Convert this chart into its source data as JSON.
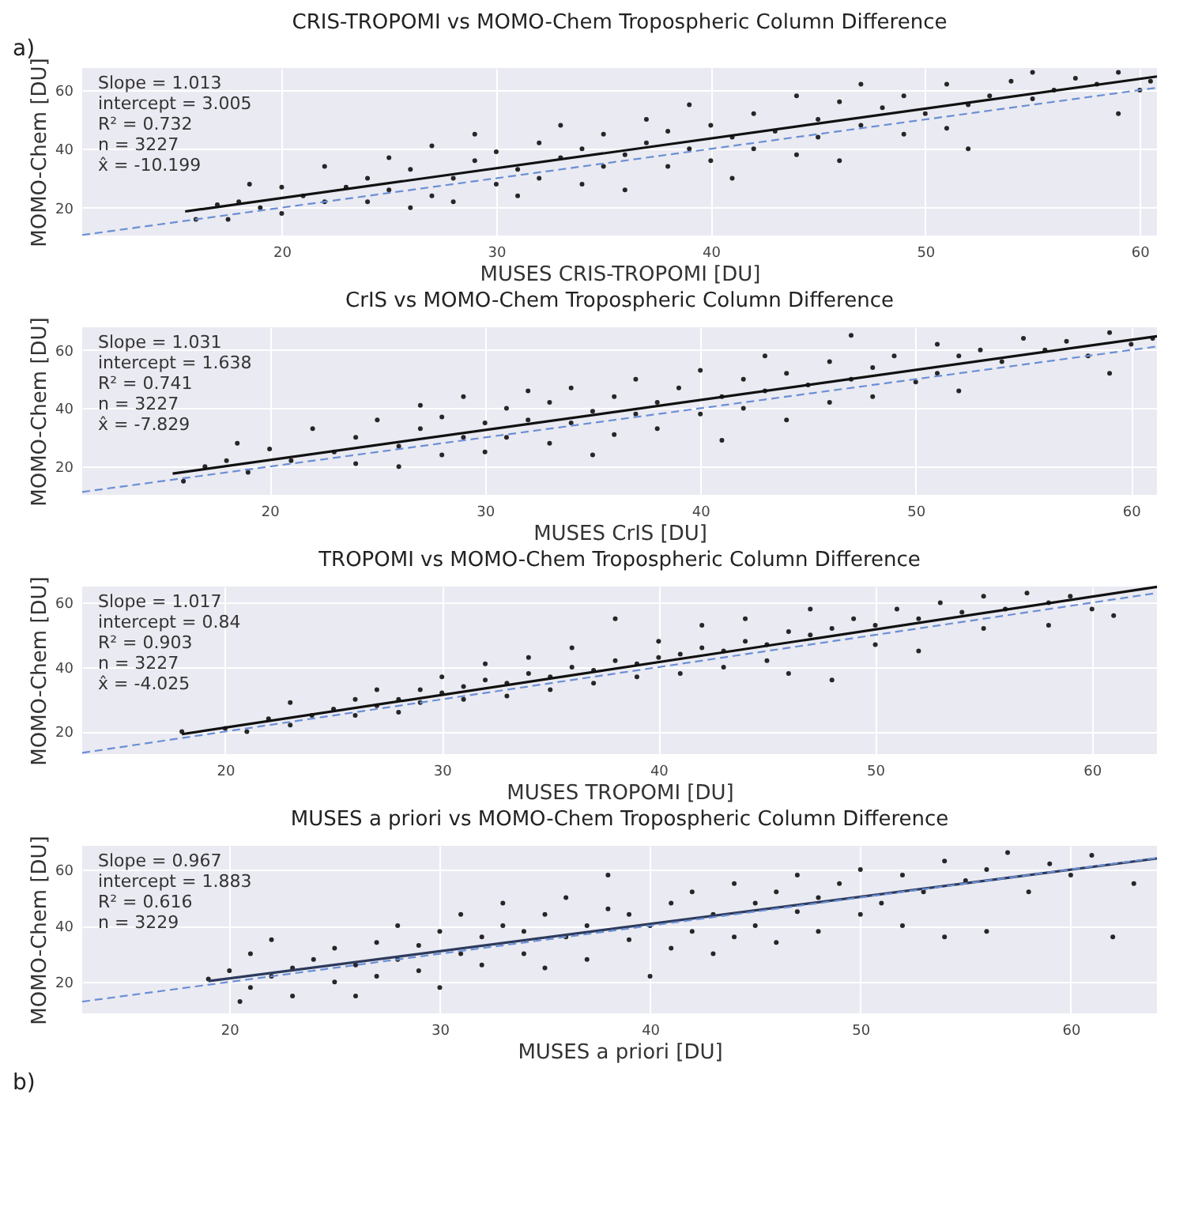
{
  "chart_data": [
    {
      "type": "scatter",
      "title": "CRIS-TROPOMI vs MOMO-Chem Tropospheric Column Difference",
      "xlabel": "MUSES CRIS-TROPOMI [DU]",
      "ylabel": "MOMO-Chem [DU]",
      "xlim": [
        10.7,
        60.8
      ],
      "ylim": [
        10.5,
        67.5
      ],
      "xticks": [
        20,
        30,
        40,
        50,
        60
      ],
      "yticks": [
        20,
        40,
        60
      ],
      "grid": true,
      "annotations": [
        "Slope = 1.013\nintercept = 3.005\nR² = 0.732\nn = 3227\nx̂ = -10.199",
        "a)"
      ],
      "series": [
        {
          "type": "scatter",
          "color": "#111111",
          "marker": "circle",
          "x": [
            16,
            17,
            17.5,
            18,
            18.5,
            19,
            20,
            20,
            21,
            22,
            22,
            23,
            24,
            24,
            25,
            25,
            26,
            26,
            27,
            27,
            28,
            28,
            29,
            29,
            30,
            30,
            31,
            31,
            32,
            32,
            33,
            33,
            34,
            34,
            35,
            35,
            36,
            36,
            37,
            37,
            38,
            38,
            39,
            39,
            40,
            40,
            41,
            41,
            42,
            42,
            43,
            44,
            44,
            45,
            45,
            46,
            46,
            47,
            47,
            48,
            49,
            49,
            50,
            51,
            51,
            52,
            52,
            53,
            54,
            55,
            55,
            56,
            57,
            58,
            59,
            59,
            60,
            60.5
          ],
          "values": [
            16,
            21,
            16,
            22,
            28,
            20,
            27,
            18,
            24,
            22,
            34,
            27,
            22,
            30,
            37,
            26,
            20,
            33,
            24,
            41,
            30,
            22,
            36,
            45,
            28,
            39,
            33,
            24,
            42,
            30,
            37,
            48,
            28,
            40,
            34,
            45,
            38,
            26,
            50,
            42,
            34,
            46,
            40,
            55,
            36,
            48,
            44,
            30,
            52,
            40,
            46,
            38,
            58,
            50,
            44,
            56,
            36,
            48,
            62,
            54,
            45,
            58,
            52,
            47,
            62,
            55,
            40,
            58,
            63,
            57,
            66,
            60,
            64,
            62,
            52,
            66,
            60,
            63
          ]
        },
        {
          "type": "line",
          "color": "#111111",
          "line_style": "solid",
          "x": [
            15.5,
            60.8
          ],
          "values": [
            18.7,
            64.6
          ]
        },
        {
          "type": "line",
          "color": "#6b8fd4",
          "line_style": "dashed",
          "x": [
            10.7,
            60.8
          ],
          "values": [
            10.7,
            60.8
          ]
        }
      ]
    },
    {
      "type": "scatter",
      "title": "CrIS vs MOMO-Chem Tropospheric Column Difference",
      "xlabel": "MUSES CrIS [DU]",
      "ylabel": "MOMO-Chem [DU]",
      "xlim": [
        11.3,
        61.2
      ],
      "ylim": [
        10.3,
        67.8
      ],
      "xticks": [
        20,
        30,
        40,
        50,
        60
      ],
      "yticks": [
        20,
        40,
        60
      ],
      "grid": true,
      "annotations": [
        "Slope = 1.031\nintercept = 1.638\nR² = 0.741\nn = 3227\nx̂ = -7.829"
      ],
      "series": [
        {
          "type": "scatter",
          "color": "#111111",
          "marker": "circle",
          "x": [
            16,
            17,
            18,
            18.5,
            19,
            20,
            21,
            22,
            23,
            24,
            24,
            25,
            26,
            26,
            27,
            27,
            28,
            28,
            29,
            29,
            30,
            30,
            31,
            31,
            32,
            32,
            33,
            33,
            34,
            34,
            35,
            35,
            36,
            36,
            37,
            37,
            38,
            38,
            39,
            40,
            40,
            41,
            41,
            42,
            42,
            43,
            43,
            44,
            44,
            45,
            46,
            46,
            47,
            47,
            48,
            48,
            49,
            50,
            51,
            51,
            52,
            52,
            53,
            54,
            55,
            56,
            57,
            58,
            59,
            59,
            60,
            61
          ],
          "values": [
            15,
            20,
            22,
            28,
            18,
            26,
            22,
            33,
            25,
            21,
            30,
            36,
            27,
            20,
            33,
            41,
            24,
            37,
            30,
            44,
            35,
            25,
            40,
            30,
            36,
            46,
            28,
            42,
            35,
            47,
            39,
            24,
            44,
            31,
            38,
            50,
            42,
            33,
            47,
            38,
            53,
            44,
            29,
            50,
            40,
            46,
            58,
            36,
            52,
            48,
            42,
            56,
            50,
            65,
            54,
            44,
            58,
            49,
            62,
            52,
            46,
            58,
            60,
            56,
            64,
            60,
            63,
            58,
            66,
            52,
            62,
            64
          ]
        },
        {
          "type": "line",
          "color": "#111111",
          "line_style": "solid",
          "x": [
            15.5,
            61.2
          ],
          "values": [
            17.6,
            64.7
          ]
        },
        {
          "type": "line",
          "color": "#6b8fd4",
          "line_style": "dashed",
          "x": [
            11.3,
            61.2
          ],
          "values": [
            11.3,
            61.2
          ]
        }
      ]
    },
    {
      "type": "scatter",
      "title": "TROPOMI vs MOMO-Chem Tropospheric Column Difference",
      "xlabel": "MUSES TROPOMI [DU]",
      "ylabel": "MOMO-Chem [DU]",
      "xlim": [
        13.4,
        63
      ],
      "ylim": [
        13,
        65
      ],
      "xticks": [
        20,
        30,
        40,
        50,
        60
      ],
      "yticks": [
        20,
        40,
        60
      ],
      "grid": true,
      "annotations": [
        "Slope = 1.017\nintercept = 0.84\nR² = 0.903\nn = 3227\nx̂ = -4.025"
      ],
      "series": [
        {
          "type": "scatter",
          "color": "#111111",
          "marker": "circle",
          "x": [
            18,
            20,
            21,
            22,
            23,
            23,
            24,
            25,
            26,
            26,
            27,
            27,
            28,
            28,
            29,
            29,
            30,
            30,
            31,
            31,
            32,
            32,
            33,
            33,
            34,
            34,
            35,
            35,
            36,
            36,
            37,
            37,
            38,
            38,
            39,
            39,
            40,
            40,
            41,
            41,
            42,
            42,
            43,
            43,
            44,
            44,
            45,
            45,
            46,
            46,
            47,
            47,
            48,
            48,
            49,
            50,
            50,
            51,
            52,
            52,
            53,
            54,
            55,
            55,
            56,
            57,
            58,
            58,
            59,
            60,
            61
          ],
          "values": [
            20,
            21,
            20,
            24,
            22,
            29,
            25,
            27,
            25,
            30,
            28,
            33,
            30,
            26,
            33,
            29,
            32,
            37,
            34,
            30,
            36,
            41,
            35,
            31,
            38,
            43,
            37,
            33,
            40,
            46,
            39,
            35,
            42,
            55,
            41,
            37,
            43,
            48,
            44,
            38,
            46,
            53,
            45,
            40,
            48,
            55,
            47,
            42,
            51,
            38,
            50,
            58,
            52,
            36,
            55,
            53,
            47,
            58,
            55,
            45,
            60,
            57,
            62,
            52,
            58,
            63,
            60,
            53,
            62,
            58,
            56
          ]
        },
        {
          "type": "line",
          "color": "#111111",
          "line_style": "solid",
          "x": [
            18,
            63
          ],
          "values": [
            19.2,
            64.9
          ]
        },
        {
          "type": "line",
          "color": "#6b8fd4",
          "line_style": "dashed",
          "x": [
            13.4,
            63
          ],
          "values": [
            13.4,
            63
          ]
        }
      ]
    },
    {
      "type": "scatter",
      "title": "MUSES a priori vs MOMO-Chem Tropospheric Column Difference",
      "xlabel": "MUSES a priori [DU]",
      "ylabel": "MOMO-Chem [DU]",
      "xlim": [
        13,
        64.1
      ],
      "ylim": [
        8.8,
        68.4
      ],
      "xticks": [
        20,
        30,
        40,
        50,
        60
      ],
      "yticks": [
        20,
        40,
        60
      ],
      "grid": true,
      "annotations": [
        "Slope = 0.967\nintercept = 1.883\nR² = 0.616\nn = 3229",
        "b)"
      ],
      "series": [
        {
          "type": "scatter",
          "color": "#111111",
          "marker": "circle",
          "x": [
            19,
            20,
            20.5,
            21,
            21,
            22,
            22,
            23,
            23,
            24,
            25,
            25,
            26,
            26,
            27,
            27,
            28,
            28,
            29,
            29,
            30,
            30,
            31,
            31,
            32,
            32,
            33,
            33,
            34,
            34,
            35,
            35,
            36,
            36,
            37,
            37,
            38,
            38,
            39,
            39,
            40,
            40,
            41,
            41,
            42,
            42,
            43,
            43,
            44,
            44,
            45,
            45,
            46,
            46,
            47,
            47,
            48,
            48,
            49,
            50,
            50,
            51,
            52,
            52,
            53,
            54,
            54,
            55,
            56,
            56,
            57,
            58,
            59,
            60,
            61,
            62,
            63
          ],
          "values": [
            21,
            24,
            13,
            30,
            18,
            22,
            35,
            25,
            15,
            28,
            20,
            32,
            15,
            26,
            22,
            34,
            28,
            40,
            24,
            33,
            18,
            38,
            30,
            44,
            26,
            36,
            40,
            48,
            30,
            38,
            44,
            25,
            36,
            50,
            40,
            28,
            46,
            58,
            35,
            44,
            40,
            22,
            48,
            32,
            38,
            52,
            44,
            30,
            36,
            55,
            48,
            40,
            52,
            34,
            45,
            58,
            38,
            50,
            55,
            44,
            60,
            48,
            40,
            58,
            52,
            63,
            36,
            56,
            60,
            38,
            66,
            52,
            62,
            58,
            65,
            36,
            55
          ]
        },
        {
          "type": "line",
          "color": "#2c3a5c",
          "line_style": "solid",
          "x": [
            19,
            64.1
          ],
          "values": [
            20.3,
            63.9
          ]
        },
        {
          "type": "line",
          "color": "#6b8fd4",
          "line_style": "dashed",
          "x": [
            13,
            64.1
          ],
          "values": [
            13,
            64.1
          ]
        }
      ]
    }
  ]
}
